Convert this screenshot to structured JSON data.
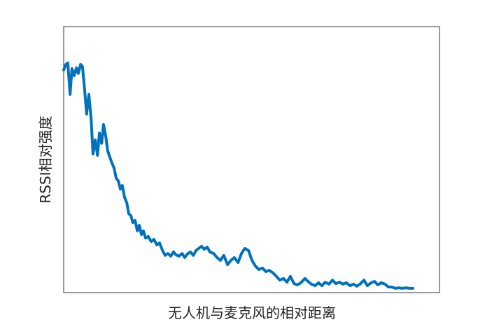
{
  "chart_data": {
    "type": "line",
    "xlabel": "无人机与麦克风的相对距离",
    "ylabel": "RSSI相对强度",
    "xlim": [
      0,
      100
    ],
    "ylim": [
      0,
      100
    ],
    "x": [
      0,
      0.6,
      1.1,
      1.7,
      2.2,
      2.8,
      3.4,
      3.9,
      4.5,
      5.0,
      5.6,
      6.1,
      6.7,
      7.3,
      7.8,
      8.4,
      9.0,
      9.5,
      10.1,
      10.6,
      11.2,
      11.7,
      12.3,
      12.8,
      13.4,
      14.0,
      14.5,
      15.1,
      15.6,
      16.2,
      16.8,
      17.3,
      17.9,
      18.4,
      19.0,
      19.6,
      20.1,
      20.7,
      21.2,
      21.8,
      22.5,
      23.3,
      24.0,
      24.8,
      25.5,
      26.3,
      27.0,
      27.7,
      28.5,
      29.2,
      29.9,
      30.7,
      31.5,
      32.2,
      32.9,
      33.7,
      34.5,
      35.2,
      35.9,
      36.7,
      37.4,
      38.2,
      38.9,
      39.9,
      40.8,
      41.7,
      42.6,
      43.6,
      44.5,
      45.4,
      46.4,
      47.3,
      48.2,
      49.2,
      50.1,
      51.0,
      51.9,
      52.9,
      53.8,
      54.7,
      55.7,
      56.6,
      57.5,
      58.5,
      59.4,
      60.3,
      61.3,
      62.2,
      63.1,
      64.2,
      65.0,
      65.9,
      66.9,
      67.8,
      68.7,
      69.6,
      70.6,
      71.5,
      72.4,
      73.4,
      74.3,
      75.2,
      76.2,
      77.1,
      78.0,
      79.0,
      79.9,
      80.8,
      81.8,
      82.7,
      83.6,
      84.5,
      85.5,
      86.4,
      87.3,
      88.3,
      89.2,
      90.1,
      91.1,
      92.0,
      92.9
    ],
    "series": [
      {
        "name": "RSSI",
        "color": "#0072bd",
        "values": [
          83.7,
          85.8,
          86.3,
          74.5,
          84.2,
          81.6,
          84.5,
          82.4,
          85.8,
          85.0,
          75.8,
          67.1,
          74.5,
          65.3,
          52.1,
          57.4,
          51.6,
          60.0,
          56.1,
          63.2,
          58.7,
          53.4,
          50.8,
          48.9,
          46.8,
          42.9,
          42.1,
          38.9,
          40.3,
          35.8,
          33.7,
          29.7,
          28.9,
          26.3,
          27.1,
          23.2,
          25.3,
          21.8,
          23.2,
          20.5,
          21.1,
          19.2,
          20.0,
          17.9,
          18.7,
          15.8,
          14.0,
          14.7,
          13.7,
          15.3,
          14.2,
          13.7,
          14.7,
          13.2,
          14.5,
          15.3,
          14.0,
          15.8,
          16.6,
          17.4,
          16.3,
          17.1,
          15.3,
          14.7,
          13.2,
          12.1,
          14.0,
          10.5,
          12.1,
          13.2,
          11.3,
          14.7,
          16.6,
          15.8,
          12.1,
          10.0,
          8.7,
          9.2,
          7.9,
          8.4,
          7.4,
          6.1,
          4.7,
          5.3,
          3.9,
          6.1,
          3.4,
          2.9,
          3.7,
          5.3,
          4.2,
          3.2,
          2.6,
          3.7,
          2.6,
          3.9,
          3.2,
          4.7,
          3.4,
          3.9,
          3.2,
          3.7,
          2.6,
          3.2,
          2.4,
          3.4,
          4.7,
          2.6,
          3.7,
          4.2,
          2.9,
          3.7,
          3.2,
          2.1,
          2.1,
          1.6,
          1.8,
          1.6,
          1.8,
          1.6,
          1.6
        ]
      }
    ]
  }
}
